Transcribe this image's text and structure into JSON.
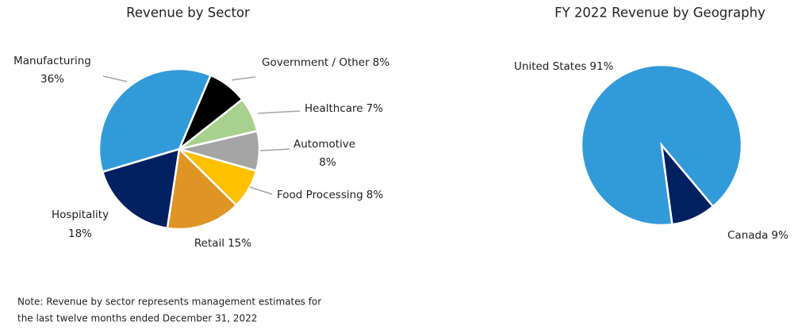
{
  "chart_data": [
    {
      "type": "pie",
      "title": "Revenue by Sector",
      "categories": [
        "Government / Other",
        "Healthcare",
        "Automotive",
        "Food Processing",
        "Retail",
        "Hospitality",
        "Manufacturing"
      ],
      "values": [
        8,
        7,
        8,
        8,
        15,
        18,
        36
      ],
      "value_labels": [
        "8%",
        "7%",
        "8%",
        "8%",
        "15%",
        "18%",
        "36%"
      ],
      "colors": [
        "#000000",
        "#a9d18e",
        "#a5a5a5",
        "#ffc000",
        "#df9424",
        "#002060",
        "#339ad9"
      ]
    },
    {
      "type": "pie",
      "title": "FY 2022 Revenue by Geography",
      "categories": [
        "Canada",
        "United States"
      ],
      "values": [
        9,
        91
      ],
      "value_labels": [
        "9%",
        "91%"
      ],
      "colors": [
        "#002060",
        "#339ad9"
      ]
    }
  ],
  "note": [
    "Note:  Revenue by sector represents management estimates for",
    "the last twelve months ended December 31, 2022"
  ]
}
